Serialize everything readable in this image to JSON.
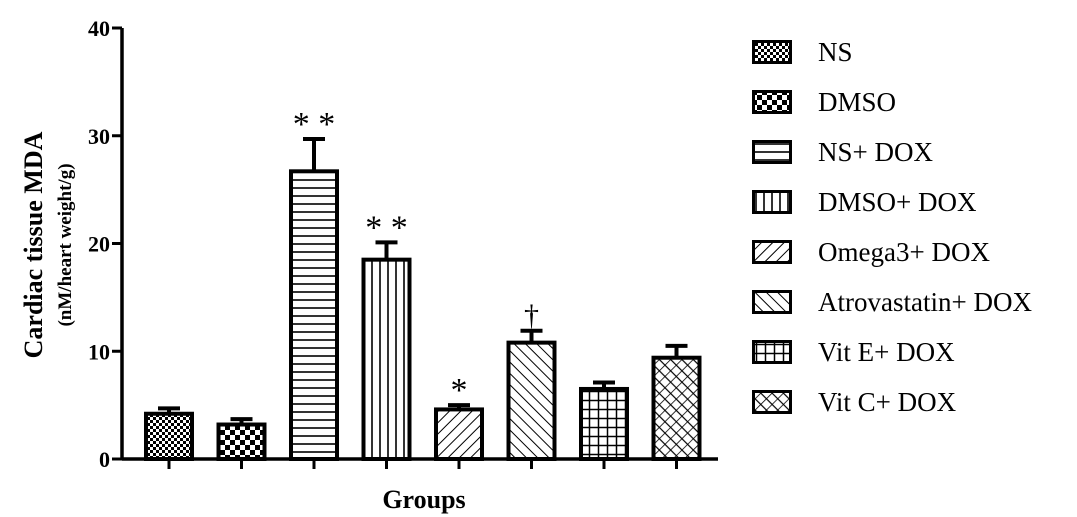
{
  "chart_data": {
    "type": "bar",
    "title": "",
    "ylabel": "Cardiac tissue MDA",
    "ylabel_units": "(nM/heart weight/g)",
    "xlabel": "Groups",
    "ylim": [
      0,
      40
    ],
    "yticks": [
      "0",
      "10",
      "20",
      "30",
      "40"
    ],
    "legend_position": "right",
    "grid": false,
    "categories": [
      "NS",
      "DMSO",
      "NS+ DOX",
      "DMSO+ DOX",
      "Omega3+ DOX",
      "Atrovastatin+ DOX",
      "Vit E+ DOX",
      "Vit C+ DOX"
    ],
    "values": [
      4.2,
      3.2,
      26.7,
      18.5,
      4.6,
      10.8,
      6.5,
      9.4
    ],
    "errors": [
      0.5,
      0.5,
      3.0,
      1.6,
      0.4,
      1.1,
      0.6,
      1.1
    ],
    "annotations": [
      "",
      "",
      "* *",
      "* *",
      "*",
      "†",
      "",
      ""
    ],
    "patterns": [
      "checker-small",
      "checker-large",
      "horizontal-lines",
      "vertical-lines",
      "diagonal-right",
      "diagonal-left",
      "grid",
      "crosshatch"
    ],
    "bar_color": "#000000"
  }
}
